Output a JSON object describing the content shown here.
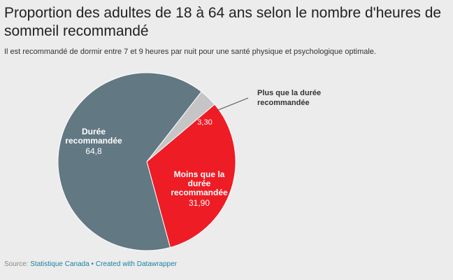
{
  "chart_data": {
    "type": "pie",
    "title": "Proportion des adultes de 18 à 64 ans selon le nombre d'heures de sommeil recommandé",
    "subtitle": "Il est recommandé de dormir entre 7 et 9 heures par nuit pour une santé physique et psychologique optimale.",
    "slices": [
      {
        "label": "Plus que la durée recommandée",
        "value": 3.3,
        "display": "3,30",
        "color": "#c5c5c5"
      },
      {
        "label": "Moins que la durée recommandée",
        "value": 31.9,
        "display": "31,90",
        "color": "#ee1c25"
      },
      {
        "label": "Durée recommandée",
        "value": 64.8,
        "display": "64,8",
        "color": "#627883"
      }
    ]
  },
  "footer": {
    "source_prefix": "Source:",
    "source_link": "Statistique Canada",
    "separator": "•",
    "credit": "Created with Datawrapper"
  },
  "labels": {
    "plus_line1": "Plus que la durée",
    "plus_line2": "recommandée",
    "plus_value": "3,30",
    "moins_line1": "Moins que la",
    "moins_line2": "durée",
    "moins_line3": "recommandée",
    "moins_value": "31,90",
    "duree_line1": "Durée",
    "duree_line2": "recommandée",
    "duree_value": "64,8"
  }
}
